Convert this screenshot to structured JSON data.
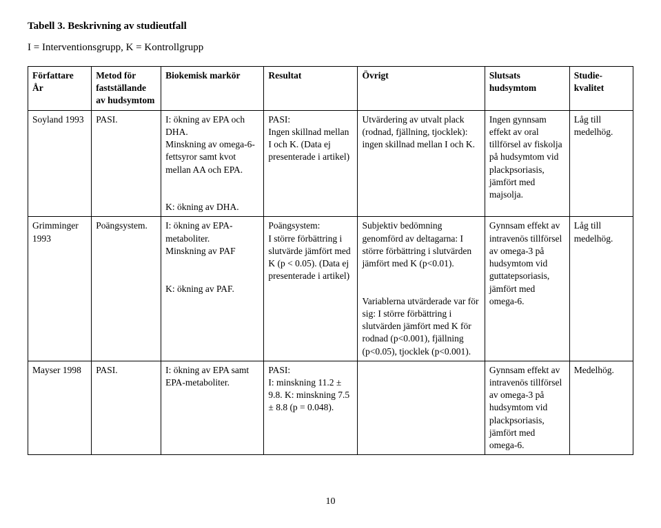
{
  "title": "Tabell 3. Beskrivning av studieutfall",
  "subtitle": "I = Interventionsgrupp, K = Kontrollgrupp",
  "columns": [
    "Författare\nÅr",
    "Metod för fastställande av hudsymtom",
    "Biokemisk markör",
    "Resultat",
    "Övrigt",
    "Slutsats hudsymtom",
    "Studie-kvalitet"
  ],
  "rows": [
    {
      "author": "Soyland 1993",
      "method": "PASI.",
      "marker": "I: ökning av EPA och DHA.\nMinskning av omega-6-fettsyror samt kvot mellan AA och EPA.\n\nK: ökning av DHA.",
      "result": "PASI:\nIngen skillnad mellan I och K. (Data ej presenterade i artikel)",
      "ovrigt": "Utvärdering av utvalt plack (rodnad, fjällning, tjocklek): ingen skillnad mellan I och K.",
      "slutsats": "Ingen gynnsam effekt av oral tillförsel av fiskolja på hudsymtom vid plackpsoriasis, jämfört med majsolja.",
      "kvalitet": "Låg till medelhög."
    },
    {
      "author": "Grimminger 1993",
      "method": "Poängsystem.",
      "marker": "I: ökning av EPA-metaboliter.\nMinskning av PAF\n\nK: ökning av PAF.",
      "result": "Poängsystem:\nI större förbättring i slutvärde jämfört med K (p < 0.05). (Data ej presenterade i artikel)",
      "ovrigt": "Subjektiv bedömning genomförd av deltagarna: I större förbättring i slutvärden jämfört med K (p<0.01).\n\nVariablerna utvärderade var för sig: I större förbättring i slutvärden jämfört med K för rodnad (p<0.001), fjällning (p<0.05), tjocklek (p<0.001).",
      "slutsats": "Gynnsam effekt av intravenös tillförsel av omega-3 på hudsymtom vid guttatepsoriasis, jämfört med omega-6.",
      "kvalitet": "Låg till medelhög."
    },
    {
      "author": "Mayser 1998",
      "method": "PASI.",
      "marker": "I: ökning av EPA samt EPA-metaboliter.",
      "result": "PASI:\nI: minskning 11.2 ± 9.8. K: minskning 7.5 ± 8.8 (p = 0.048).",
      "ovrigt": "",
      "slutsats": "Gynnsam effekt av intravenös tillförsel av omega-3 på hudsymtom vid plackpsoriasis, jämfört med omega-6.",
      "kvalitet": "Medelhög."
    }
  ],
  "pagenum": "10"
}
